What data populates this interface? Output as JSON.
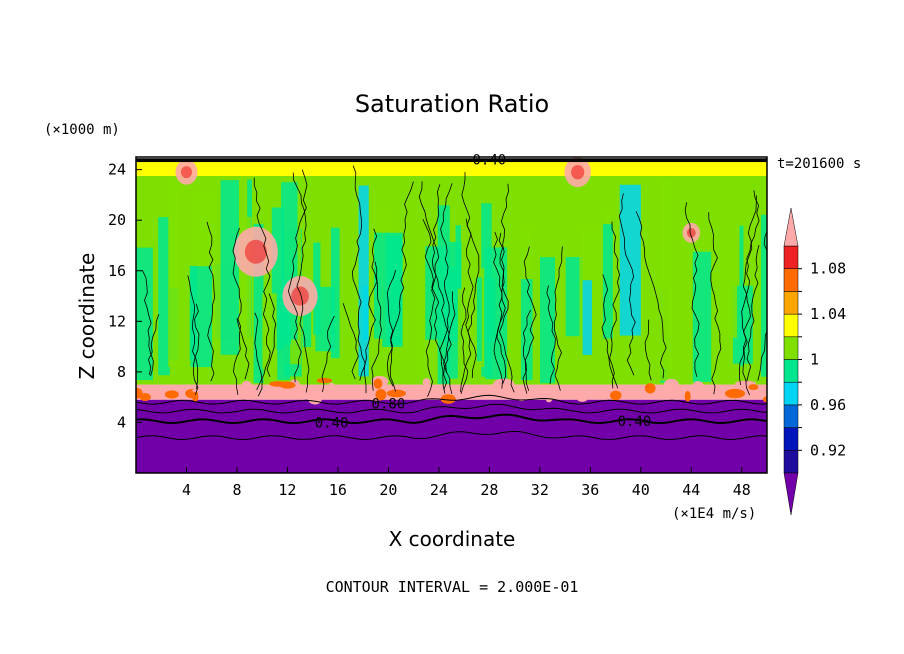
{
  "chart_data": {
    "type": "heatmap",
    "title": "Saturation Ratio",
    "xlabel": "X coordinate",
    "ylabel": "Z coordinate",
    "x_unit": "(×1E4 m/s)",
    "y_unit": "(×1000 m)",
    "time_label": "t=201600 s",
    "footer": "CONTOUR INTERVAL = 2.000E-01",
    "xlim": [
      0,
      50
    ],
    "ylim": [
      0,
      25
    ],
    "x_ticks": [
      4,
      8,
      12,
      16,
      20,
      24,
      28,
      32,
      36,
      40,
      44,
      48
    ],
    "y_ticks": [
      4,
      8,
      12,
      16,
      20,
      24
    ],
    "contour_labels": [
      {
        "text": "0.40",
        "x": 15.5,
        "y": 4.0
      },
      {
        "text": "0.40",
        "x": 39.5,
        "y": 4.1
      },
      {
        "text": "0.80",
        "x": 20.0,
        "y": 5.5
      },
      {
        "text": "0.40",
        "x": 28.0,
        "y": 24.8
      }
    ],
    "colorbar": {
      "levels": [
        0.92,
        0.94,
        0.96,
        0.98,
        1.0,
        1.02,
        1.04,
        1.06,
        1.08
      ],
      "tick_labels": [
        "0.92",
        "0.96",
        "1",
        "1.04",
        "1.08"
      ],
      "colors": [
        "#1f0d9e",
        "#0014bb",
        "#0068d8",
        "#00d4f5",
        "#00e68f",
        "#7fe000",
        "#ffff00",
        "#ffa500",
        "#ff6b00",
        "#ee2222",
        "#ffaaaa"
      ],
      "under_color": "#7200a8",
      "over_color": "#ffaaaa"
    },
    "regions": [
      {
        "label": "subsaturated lower layer (<0.92)",
        "z_range": [
          0,
          5.8
        ],
        "color": "#7200a8"
      },
      {
        "label": "supersaturated band",
        "z_range": [
          5.8,
          7.0
        ],
        "color": "#ffaaaa"
      },
      {
        "label": "near saturation (~1.00)",
        "z_range": [
          7.0,
          23.5
        ],
        "color": "#7fe000"
      },
      {
        "label": "near-top band",
        "z_range": [
          23.5,
          24.7
        ],
        "color": "#ffff00"
      }
    ]
  }
}
